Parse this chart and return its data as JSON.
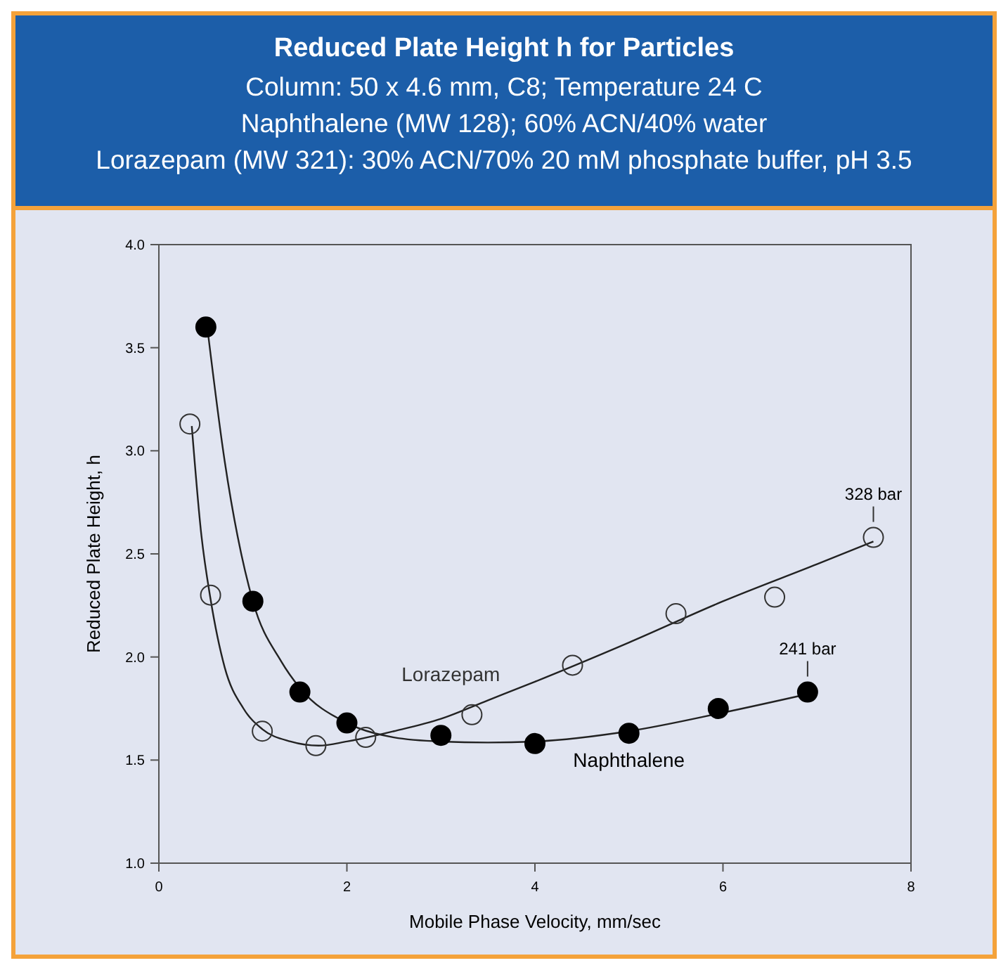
{
  "chart_data": {
    "type": "scatter",
    "title": "Reduced Plate Height h for Particles",
    "subtitle": "Column: 50 x 4.6 mm, C8; Temperature 24 C\nNaphthalene (MW 128);  60% ACN/40% water\nLorazepam (MW 321): 30% ACN/70% 20 mM phosphate buffer, pH 3.5",
    "xlabel": "Mobile Phase Velocity, mm/sec",
    "ylabel": "Reduced Plate Height, h",
    "xlim": [
      0,
      8
    ],
    "xticks": [
      0,
      2,
      4,
      6,
      8
    ],
    "ylim": [
      1,
      4
    ],
    "yticks": [
      {
        "value": 1,
        "label": "1.0"
      },
      1.5,
      {
        "value": 2,
        "label": "2.0"
      },
      2.5,
      {
        "value": 3,
        "label": "3.0"
      },
      3.5,
      {
        "value": 4,
        "label": "4.0"
      }
    ],
    "grid": false,
    "series": [
      {
        "name": "Naphthalene",
        "color": "#000000",
        "marker": "circle",
        "x": [
          0.5,
          1.0,
          1.5,
          2.0,
          3.0,
          4.0,
          5.0,
          5.95,
          6.9
        ],
        "values": [
          3.6,
          2.27,
          1.83,
          1.68,
          1.62,
          1.58,
          1.63,
          1.75,
          1.83
        ]
      },
      {
        "name": "Lorazepam",
        "color": "#333333",
        "marker": "circle",
        "x": [
          0.33,
          0.55,
          1.1,
          1.67,
          2.2,
          3.33,
          4.4,
          5.5,
          6.55,
          7.6
        ],
        "values": [
          3.13,
          2.3,
          1.64,
          1.57,
          1.61,
          1.72,
          1.96,
          2.21,
          2.29,
          2.58
        ]
      },
      {
        "type": "line",
        "color": "#222222",
        "line_style": "solid",
        "marker": "none",
        "x": [
          0.52,
          0.7,
          1.0,
          1.3,
          1.5,
          2.0,
          2.5,
          3.0,
          3.5,
          4.0,
          5.0,
          6.0,
          6.9
        ],
        "values": [
          3.58,
          2.95,
          2.27,
          1.98,
          1.85,
          1.68,
          1.61,
          1.59,
          1.585,
          1.59,
          1.64,
          1.73,
          1.82
        ]
      },
      {
        "type": "line",
        "color": "#222222",
        "line_style": "solid",
        "marker": "none",
        "x": [
          0.35,
          0.45,
          0.55,
          0.7,
          0.9,
          1.1,
          1.4,
          1.7,
          2.0,
          2.5,
          3.0,
          3.5,
          4.0,
          5.0,
          6.0,
          7.0,
          7.6
        ],
        "values": [
          3.12,
          2.6,
          2.28,
          1.95,
          1.75,
          1.65,
          1.59,
          1.57,
          1.59,
          1.64,
          1.7,
          1.79,
          1.88,
          2.07,
          2.27,
          2.45,
          2.56
        ]
      }
    ],
    "annotations": [
      {
        "text": "241 bar",
        "x": 6.9,
        "y": 1.83
      },
      {
        "text": "328 bar",
        "x": 7.6,
        "y": 2.58
      }
    ]
  }
}
